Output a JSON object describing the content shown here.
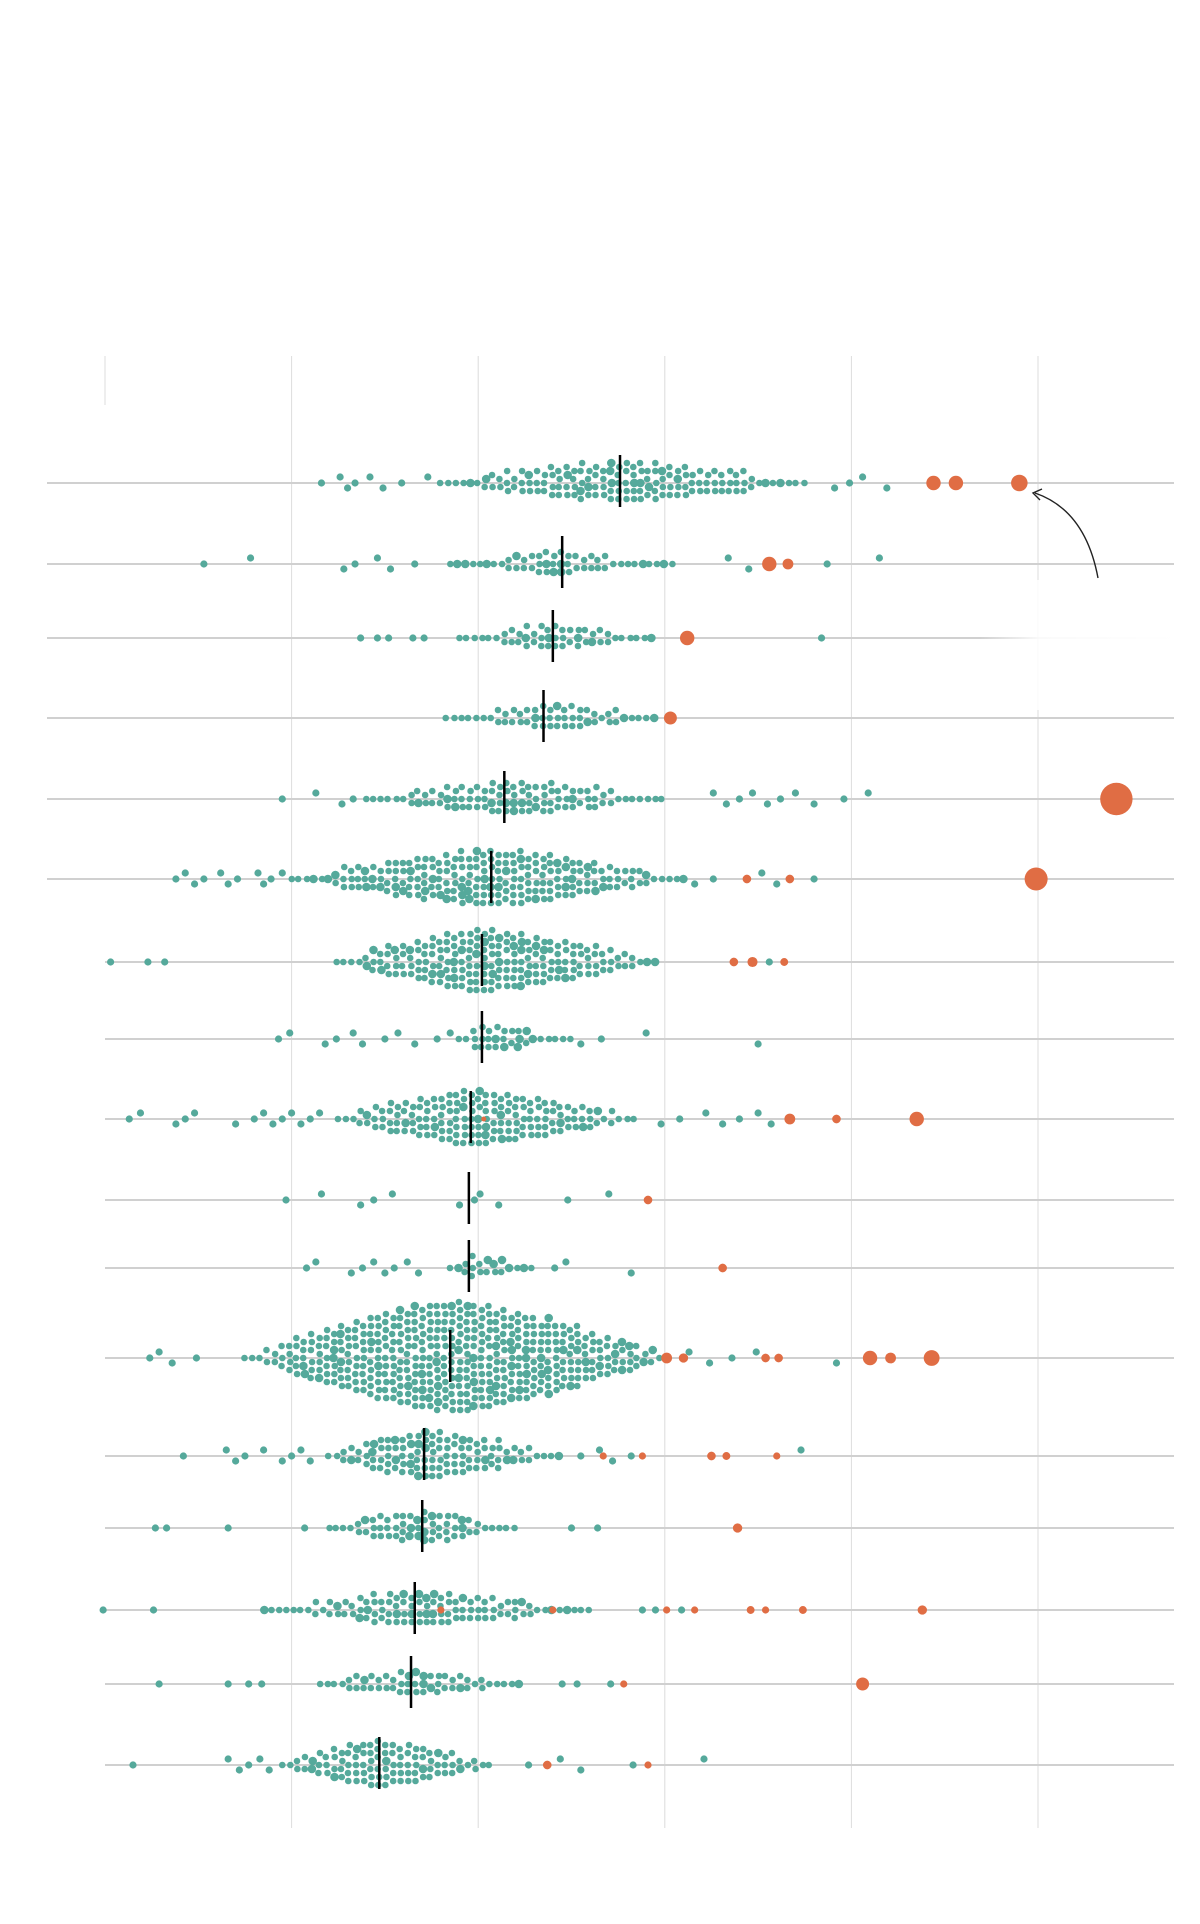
{
  "chart_data": {
    "type": "scatter",
    "subtype": "beeswarm",
    "title": "",
    "xlabel": "",
    "ylabel": "",
    "xlim": [
      0,
      5.75
    ],
    "gridlines": [
      1,
      2,
      3,
      4,
      5
    ],
    "grid": true,
    "colors": {
      "typical": "#55a99b",
      "highlight": "#e06d44",
      "median": "#000000",
      "baseline": "#d0d0d0",
      "grid": "#dcdcdc"
    },
    "annotation_arrow": {
      "points_to_row": 0,
      "points_to_value": 4.9
    },
    "rows": [
      {
        "median": 2.76,
        "body": {
          "from": 1.8,
          "to": 3.77,
          "peak": 5
        },
        "teal": [
          1.16,
          1.26,
          1.3,
          1.34,
          1.42,
          1.49,
          1.59,
          1.73,
          3.91,
          3.99,
          4.06,
          4.19
        ],
        "orange": [
          [
            4.44,
            2
          ],
          [
            4.56,
            2
          ],
          [
            4.9,
            2.3
          ]
        ]
      },
      {
        "median": 2.45,
        "body": {
          "from": 1.85,
          "to": 3.05,
          "peak": 3
        },
        "teal": [
          0.53,
          0.78,
          1.28,
          1.34,
          1.46,
          1.53,
          1.66,
          3.34,
          3.45,
          3.87,
          4.15
        ],
        "orange": [
          [
            3.56,
            2
          ],
          [
            3.66,
            1.5
          ]
        ]
      },
      {
        "median": 2.4,
        "body": {
          "from": 1.9,
          "to": 2.95,
          "peak": 3
        },
        "teal": [
          1.37,
          1.46,
          1.52,
          1.65,
          1.71,
          3.84
        ],
        "orange": [
          [
            3.12,
            2
          ]
        ]
      },
      {
        "median": 2.35,
        "body": {
          "from": 1.83,
          "to": 2.98,
          "peak": 3
        },
        "teal": [],
        "orange": [
          [
            3.03,
            1.8
          ]
        ]
      },
      {
        "median": 2.14,
        "body": {
          "from": 1.4,
          "to": 3.01,
          "peak": 4
        },
        "teal": [
          0.95,
          1.13,
          1.27,
          1.33,
          3.26,
          3.33,
          3.4,
          3.47,
          3.55,
          3.62,
          3.7,
          3.8,
          3.96,
          4.09
        ],
        "orange": [
          [
            5.42,
            4.5
          ]
        ]
      },
      {
        "median": 2.07,
        "body": {
          "from": 1.0,
          "to": 3.11,
          "peak": 7
        },
        "teal": [
          0.38,
          0.43,
          0.48,
          0.53,
          0.62,
          0.66,
          0.71,
          0.82,
          0.85,
          0.89,
          0.95,
          3.16,
          3.26,
          3.52,
          3.6,
          3.8
        ],
        "orange": [
          [
            3.44,
            1.2
          ],
          [
            3.67,
            1.2
          ],
          [
            4.99,
            3.2
          ]
        ]
      },
      {
        "median": 2.02,
        "body": {
          "from": 1.24,
          "to": 2.97,
          "peak": 8
        },
        "teal": [
          0.03,
          0.23,
          0.32,
          3.56
        ],
        "orange": [
          [
            3.37,
            1.2
          ],
          [
            3.47,
            1.4
          ],
          [
            3.64,
            1.1
          ]
        ]
      },
      {
        "median": 2.02,
        "body": {
          "from": 1.9,
          "to": 2.5,
          "peak": 3
        },
        "teal": [
          0.93,
          0.99,
          1.18,
          1.24,
          1.33,
          1.38,
          1.5,
          1.57,
          1.66,
          1.78,
          1.85,
          2.55,
          2.66,
          2.9,
          3.5
        ],
        "orange": []
      },
      {
        "median": 1.96,
        "body": {
          "from": 1.25,
          "to": 2.85,
          "peak": 7
        },
        "teal": [
          0.13,
          0.19,
          0.38,
          0.43,
          0.48,
          0.7,
          0.8,
          0.85,
          0.9,
          0.95,
          1.0,
          1.05,
          1.1,
          1.15,
          2.98,
          3.08,
          3.22,
          3.31,
          3.4,
          3.5,
          3.57
        ],
        "orange": [
          [
            2.03,
            0.7
          ],
          [
            3.67,
            1.5
          ],
          [
            3.92,
            1.2
          ],
          [
            4.35,
            2
          ]
        ]
      },
      {
        "median": 1.95,
        "body": null,
        "teal": [
          0.97,
          1.16,
          1.37,
          1.44,
          1.54,
          1.9,
          1.98,
          2.01,
          2.11,
          2.48,
          2.7
        ],
        "orange": [
          [
            2.91,
            1.2
          ]
        ]
      },
      {
        "median": 1.95,
        "body": {
          "from": 1.85,
          "to": 2.3,
          "peak": 3
        },
        "teal": [
          1.08,
          1.13,
          1.32,
          1.38,
          1.44,
          1.5,
          1.55,
          1.62,
          1.68,
          2.41,
          2.47,
          2.82
        ],
        "orange": [
          [
            3.31,
            1.2
          ]
        ]
      },
      {
        "median": 1.85,
        "body": {
          "from": 0.75,
          "to": 3.05,
          "peak": 14
        },
        "teal": [
          0.24,
          0.29,
          0.36,
          0.49,
          3.13,
          3.24,
          3.36,
          3.49,
          3.92
        ],
        "orange": [
          [
            3.01,
            1.5
          ],
          [
            3.1,
            1.3
          ],
          [
            3.54,
            1.2
          ],
          [
            3.61,
            1.2
          ],
          [
            4.1,
            2
          ],
          [
            4.21,
            1.5
          ],
          [
            4.43,
            2.2
          ]
        ]
      },
      {
        "median": 1.71,
        "body": {
          "from": 1.2,
          "to": 2.45,
          "peak": 6
        },
        "teal": [
          0.42,
          0.65,
          0.7,
          0.75,
          0.85,
          0.95,
          1.0,
          1.05,
          1.1,
          2.55,
          2.65,
          2.72,
          2.82,
          3.73
        ],
        "orange": [
          [
            2.67,
            1
          ],
          [
            2.88,
            1
          ],
          [
            3.25,
            1.2
          ],
          [
            3.33,
            1.1
          ],
          [
            3.6,
            1
          ]
        ]
      },
      {
        "median": 1.7,
        "body": {
          "from": 1.2,
          "to": 2.2,
          "peak": 4
        },
        "teal": [
          0.27,
          0.33,
          0.66,
          1.07,
          2.5,
          2.64
        ],
        "orange": [
          [
            3.39,
            1.3
          ]
        ]
      },
      {
        "median": 1.66,
        "body": {
          "from": 0.85,
          "to": 2.6,
          "peak": 4
        },
        "teal": [
          -0.01,
          0.26,
          2.88,
          2.95,
          3.09
        ],
        "orange": [
          [
            1.8,
            1
          ],
          [
            2.4,
            1
          ],
          [
            3.01,
            1
          ],
          [
            3.16,
            1
          ],
          [
            3.46,
            1.1
          ],
          [
            3.54,
            1
          ],
          [
            3.74,
            1.1
          ],
          [
            4.38,
            1.3
          ]
        ]
      },
      {
        "median": 1.64,
        "body": {
          "from": 1.15,
          "to": 2.25,
          "peak": 3
        },
        "teal": [
          0.29,
          0.66,
          0.77,
          0.84,
          2.45,
          2.53,
          2.71
        ],
        "orange": [
          [
            2.78,
            1
          ],
          [
            4.06,
            1.8
          ]
        ]
      },
      {
        "median": 1.47,
        "body": {
          "from": 0.95,
          "to": 2.1,
          "peak": 6
        },
        "teal": [
          0.15,
          0.66,
          0.72,
          0.77,
          0.83,
          0.88,
          2.27,
          2.44,
          2.55,
          2.83,
          3.21
        ],
        "orange": [
          [
            2.37,
            1.2
          ],
          [
            2.91,
            1
          ]
        ]
      }
    ]
  }
}
